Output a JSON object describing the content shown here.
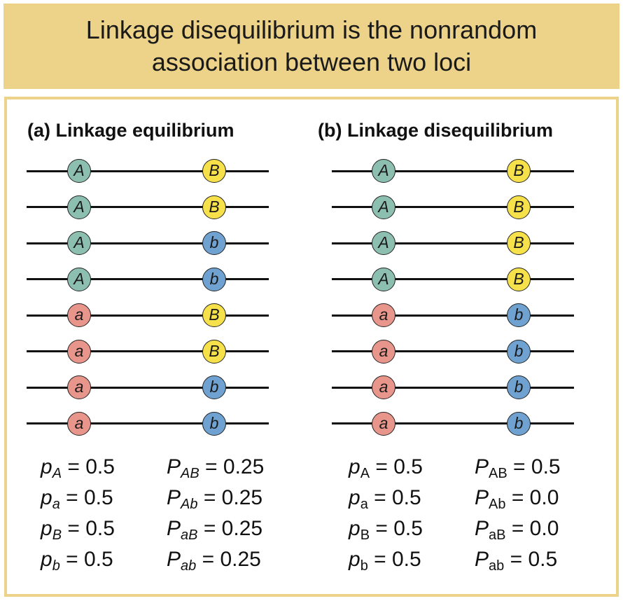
{
  "title": "Linkage disequilibrium is the nonrandom association between two loci",
  "panels": [
    {
      "heading": "(a) Linkage equilibrium",
      "chromosomes": [
        [
          "A",
          "B"
        ],
        [
          "A",
          "B"
        ],
        [
          "A",
          "b"
        ],
        [
          "A",
          "b"
        ],
        [
          "a",
          "B"
        ],
        [
          "a",
          "B"
        ],
        [
          "a",
          "b"
        ],
        [
          "a",
          "b"
        ]
      ],
      "allele_freqs": [
        {
          "symbol": "p",
          "sub": "A",
          "value": "= 0.5"
        },
        {
          "symbol": "p",
          "sub": "a",
          "value": "= 0.5"
        },
        {
          "symbol": "p",
          "sub": "B",
          "value": "= 0.5"
        },
        {
          "symbol": "p",
          "sub": "b",
          "value": "= 0.5"
        }
      ],
      "haplotype_freqs": [
        {
          "symbol": "P",
          "sub": "AB",
          "value": "= 0.25"
        },
        {
          "symbol": "P",
          "sub": "Ab",
          "value": "= 0.25"
        },
        {
          "symbol": "P",
          "sub": "aB",
          "value": "= 0.25"
        },
        {
          "symbol": "P",
          "sub": "ab",
          "value": "= 0.25"
        }
      ],
      "subscript_style": "italic"
    },
    {
      "heading": "(b) Linkage disequilibrium",
      "chromosomes": [
        [
          "A",
          "B"
        ],
        [
          "A",
          "B"
        ],
        [
          "A",
          "B"
        ],
        [
          "A",
          "B"
        ],
        [
          "a",
          "b"
        ],
        [
          "a",
          "b"
        ],
        [
          "a",
          "b"
        ],
        [
          "a",
          "b"
        ]
      ],
      "allele_freqs": [
        {
          "symbol": "p",
          "sub": "A",
          "value": "= 0.5"
        },
        {
          "symbol": "p",
          "sub": "a",
          "value": "= 0.5"
        },
        {
          "symbol": "p",
          "sub": "B",
          "value": "= 0.5"
        },
        {
          "symbol": "p",
          "sub": "b",
          "value": "= 0.5"
        }
      ],
      "haplotype_freqs": [
        {
          "symbol": "P",
          "sub": "AB",
          "value": "= 0.5"
        },
        {
          "symbol": "P",
          "sub": "Ab",
          "value": "= 0.0"
        },
        {
          "symbol": "P",
          "sub": "aB",
          "value": "= 0.0"
        },
        {
          "symbol": "P",
          "sub": "ab",
          "value": "= 0.5"
        }
      ],
      "subscript_style": "upright"
    }
  ],
  "colors": {
    "banner": "#ecd389",
    "allele_A": "#8dbfb0",
    "allele_a": "#e8958b",
    "allele_B": "#f6e14a",
    "allele_b": "#6fa2d1"
  }
}
